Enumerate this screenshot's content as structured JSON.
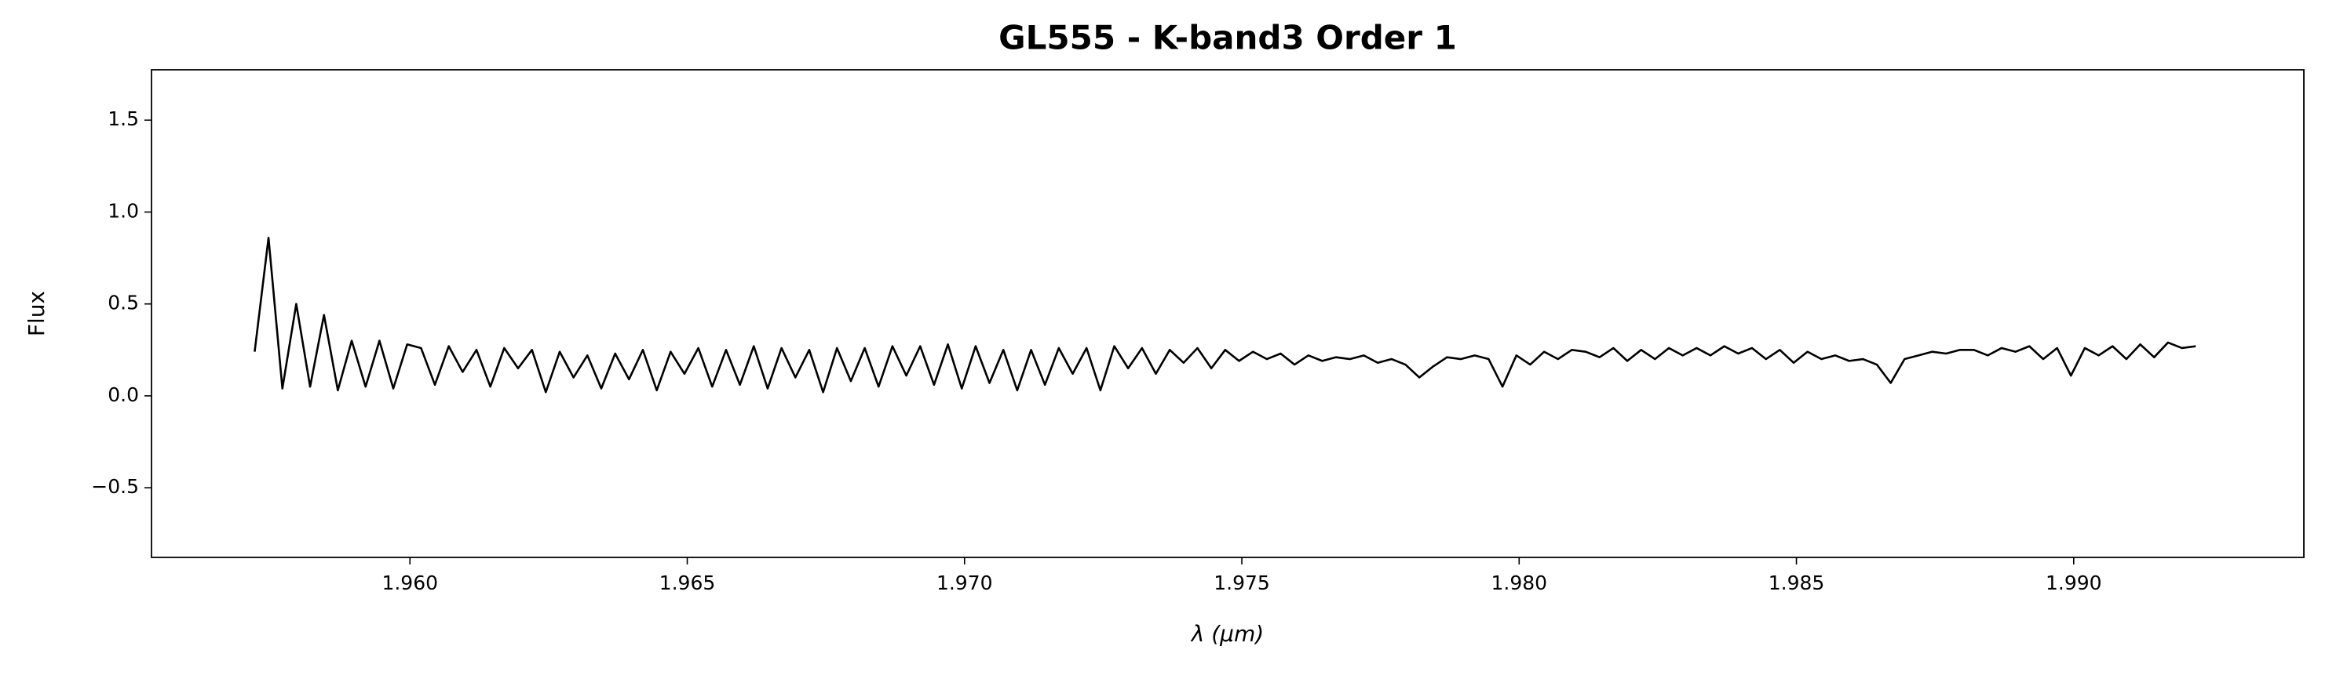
{
  "chart_data": {
    "type": "line",
    "title": "GL555 - K-band3 Order 1",
    "xlabel": "λ (μm)",
    "ylabel": "Flux",
    "xlim": [
      1.95534,
      1.99415
    ],
    "ylim": [
      -0.879,
      1.774
    ],
    "xticks": [
      {
        "value": 1.96,
        "label": "1.960"
      },
      {
        "value": 1.965,
        "label": "1.965"
      },
      {
        "value": 1.97,
        "label": "1.970"
      },
      {
        "value": 1.975,
        "label": "1.975"
      },
      {
        "value": 1.98,
        "label": "1.980"
      },
      {
        "value": 1.985,
        "label": "1.985"
      },
      {
        "value": 1.99,
        "label": "1.990"
      }
    ],
    "yticks": [
      {
        "value": -0.5,
        "label": "−0.5"
      },
      {
        "value": 0.0,
        "label": "0.0"
      },
      {
        "value": 0.5,
        "label": "0.5"
      },
      {
        "value": 1.0,
        "label": "1.0"
      },
      {
        "value": 1.5,
        "label": "1.5"
      }
    ],
    "grid": false,
    "x": [
      1.9572,
      1.95745,
      1.9577,
      1.95795,
      1.9582,
      1.95845,
      1.9587,
      1.95895,
      1.9592,
      1.95945,
      1.9597,
      1.95995,
      1.9602,
      1.96045,
      1.9607,
      1.96095,
      1.9612,
      1.96145,
      1.9617,
      1.96195,
      1.9622,
      1.96245,
      1.9627,
      1.96295,
      1.9632,
      1.96345,
      1.9637,
      1.96395,
      1.9642,
      1.96445,
      1.9647,
      1.96495,
      1.9652,
      1.96545,
      1.9657,
      1.96595,
      1.9662,
      1.96645,
      1.9667,
      1.96695,
      1.9672,
      1.96745,
      1.9677,
      1.96795,
      1.9682,
      1.96845,
      1.9687,
      1.96895,
      1.9692,
      1.96945,
      1.9697,
      1.96995,
      1.9702,
      1.97045,
      1.9707,
      1.97095,
      1.9712,
      1.97145,
      1.9717,
      1.97195,
      1.9722,
      1.97245,
      1.9727,
      1.97295,
      1.9732,
      1.97345,
      1.9737,
      1.97395,
      1.9742,
      1.97445,
      1.9747,
      1.97495,
      1.9752,
      1.97545,
      1.9757,
      1.97595,
      1.9762,
      1.97645,
      1.9767,
      1.97695,
      1.9772,
      1.97745,
      1.9777,
      1.97795,
      1.9782,
      1.97845,
      1.9787,
      1.97895,
      1.9792,
      1.97945,
      1.9797,
      1.97995,
      1.9802,
      1.98045,
      1.9807,
      1.98095,
      1.9812,
      1.98145,
      1.9817,
      1.98195,
      1.9822,
      1.98245,
      1.9827,
      1.98295,
      1.9832,
      1.98345,
      1.9837,
      1.98395,
      1.9842,
      1.98445,
      1.9847,
      1.98495,
      1.9852,
      1.98545,
      1.9857,
      1.98595,
      1.9862,
      1.98645,
      1.9867,
      1.98695,
      1.9872,
      1.98745,
      1.9877,
      1.98795,
      1.9882,
      1.98845,
      1.9887,
      1.98895,
      1.9892,
      1.98945,
      1.9897,
      1.98995,
      1.9902,
      1.99045,
      1.9907,
      1.99095,
      1.9912,
      1.99145,
      1.9917,
      1.99195,
      1.9922
    ],
    "series": [
      {
        "name": "Flux",
        "color": "#000000",
        "values": [
          0.24,
          0.86,
          0.04,
          0.5,
          0.05,
          0.44,
          0.03,
          0.3,
          0.05,
          0.3,
          0.04,
          0.28,
          0.26,
          0.06,
          0.27,
          0.13,
          0.25,
          0.05,
          0.26,
          0.15,
          0.25,
          0.02,
          0.24,
          0.1,
          0.22,
          0.04,
          0.23,
          0.09,
          0.25,
          0.03,
          0.24,
          0.12,
          0.26,
          0.05,
          0.25,
          0.06,
          0.27,
          0.04,
          0.26,
          0.1,
          0.25,
          0.02,
          0.26,
          0.08,
          0.26,
          0.05,
          0.27,
          0.11,
          0.27,
          0.06,
          0.28,
          0.04,
          0.27,
          0.07,
          0.25,
          0.03,
          0.25,
          0.06,
          0.26,
          0.12,
          0.26,
          0.03,
          0.27,
          0.15,
          0.26,
          0.12,
          0.25,
          0.18,
          0.26,
          0.15,
          0.25,
          0.19,
          0.24,
          0.2,
          0.23,
          0.17,
          0.22,
          0.19,
          0.21,
          0.2,
          0.22,
          0.18,
          0.2,
          0.17,
          0.1,
          0.16,
          0.21,
          0.2,
          0.22,
          0.2,
          0.05,
          0.22,
          0.17,
          0.24,
          0.2,
          0.25,
          0.24,
          0.21,
          0.26,
          0.19,
          0.25,
          0.2,
          0.26,
          0.22,
          0.26,
          0.22,
          0.27,
          0.23,
          0.26,
          0.2,
          0.25,
          0.18,
          0.24,
          0.2,
          0.22,
          0.19,
          0.2,
          0.17,
          0.07,
          0.2,
          0.22,
          0.24,
          0.23,
          0.25,
          0.25,
          0.22,
          0.26,
          0.24,
          0.27,
          0.2,
          0.26,
          0.11,
          0.26,
          0.22,
          0.27,
          0.2,
          0.28,
          0.21,
          0.29,
          0.26,
          0.27
        ]
      }
    ]
  }
}
